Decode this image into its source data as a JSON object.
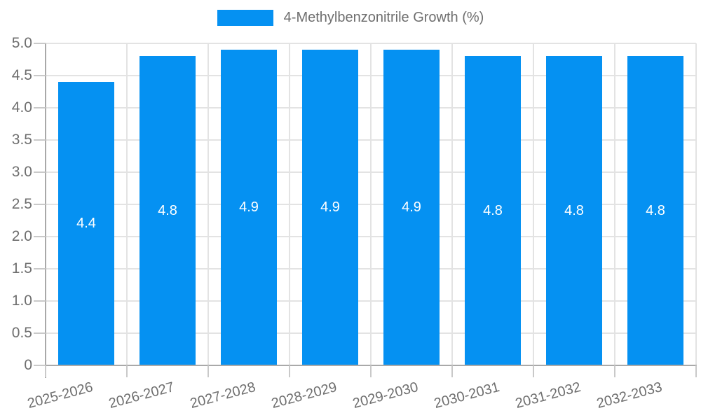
{
  "legend": {
    "label": "4-Methylbenzonitrile Growth (%)"
  },
  "colors": {
    "bar": "#0591F2",
    "grid": "#E3E3E3",
    "axis": "#A9A9A9",
    "tick": "#C9C9C9",
    "text": "#6E6E6E",
    "value_label": "#FFFFFF"
  },
  "chart_data": {
    "type": "bar",
    "title": "4-Methylbenzonitrile Growth (%)",
    "categories": [
      "2025-2026",
      "2026-2027",
      "2027-2028",
      "2028-2029",
      "2029-2030",
      "2030-2031",
      "2031-2032",
      "2032-2033"
    ],
    "values": [
      4.4,
      4.8,
      4.9,
      4.9,
      4.9,
      4.8,
      4.8,
      4.8
    ],
    "data_labels": [
      "4.4",
      "4.8",
      "4.9",
      "4.9",
      "4.9",
      "4.8",
      "4.8",
      "4.8"
    ],
    "xlabel": "",
    "ylabel": "",
    "ylim": [
      0,
      5
    ],
    "ytick_step": 0.5,
    "yticks": [
      "0",
      "0.5",
      "1.0",
      "1.5",
      "2.0",
      "2.5",
      "3.0",
      "3.5",
      "4.0",
      "4.5",
      "5.0"
    ],
    "grid": true,
    "legend_position": "top"
  }
}
